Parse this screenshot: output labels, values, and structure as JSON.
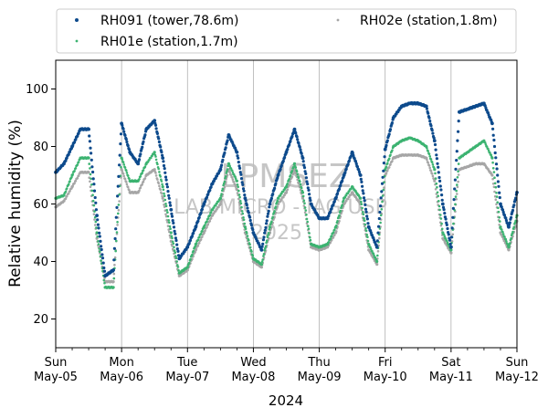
{
  "chart_data": {
    "type": "scatter",
    "xlabel": "2024",
    "ylabel": "Relative humidity (%)",
    "ylim": [
      10,
      110
    ],
    "yticks": [
      20,
      40,
      60,
      80,
      100
    ],
    "xlim": [
      "2024-05-05 00:00",
      "2024-05-12 00:00"
    ],
    "x_major_ticks": [
      {
        "day": "Sun",
        "date": "May-05"
      },
      {
        "day": "Mon",
        "date": "May-06"
      },
      {
        "day": "Tue",
        "date": "May-07"
      },
      {
        "day": "Wed",
        "date": "May-08"
      },
      {
        "day": "Thu",
        "date": "May-09"
      },
      {
        "day": "Fri",
        "date": "May-10"
      },
      {
        "day": "Sat",
        "date": "May-11"
      },
      {
        "day": "Sun",
        "date": "May-12"
      }
    ],
    "grid": "vertical-daily",
    "legend_placement": "top, above plot, 2 columns",
    "watermark": {
      "line1": "LPMSEZ",
      "line2": "LAB MICRO - IAG USP",
      "line3": "2025"
    },
    "series": [
      {
        "name": "RH091 (tower,78.6m)",
        "color": "#0d4a8c",
        "x": [
          "2024-05-05 00:00",
          "2024-05-05 03:00",
          "2024-05-05 06:00",
          "2024-05-05 09:00",
          "2024-05-05 12:00",
          "2024-05-05 15:00",
          "2024-05-05 18:00",
          "2024-05-05 21:00",
          "2024-05-06 00:00",
          "2024-05-06 03:00",
          "2024-05-06 06:00",
          "2024-05-06 09:00",
          "2024-05-06 12:00",
          "2024-05-06 15:00",
          "2024-05-06 18:00",
          "2024-05-06 21:00",
          "2024-05-07 00:00",
          "2024-05-07 03:00",
          "2024-05-07 06:00",
          "2024-05-07 09:00",
          "2024-05-07 12:00",
          "2024-05-07 15:00",
          "2024-05-07 18:00",
          "2024-05-07 21:00",
          "2024-05-08 00:00",
          "2024-05-08 03:00",
          "2024-05-08 06:00",
          "2024-05-08 09:00",
          "2024-05-08 12:00",
          "2024-05-08 15:00",
          "2024-05-08 18:00",
          "2024-05-08 21:00",
          "2024-05-09 00:00",
          "2024-05-09 03:00",
          "2024-05-09 06:00",
          "2024-05-09 09:00",
          "2024-05-09 12:00",
          "2024-05-09 15:00",
          "2024-05-09 18:00",
          "2024-05-09 21:00",
          "2024-05-10 00:00",
          "2024-05-10 03:00",
          "2024-05-10 06:00",
          "2024-05-10 09:00",
          "2024-05-10 12:00",
          "2024-05-10 15:00",
          "2024-05-10 18:00",
          "2024-05-10 21:00",
          "2024-05-11 00:00",
          "2024-05-11 03:00",
          "2024-05-11 06:00",
          "2024-05-11 09:00",
          "2024-05-11 12:00",
          "2024-05-11 15:00",
          "2024-05-11 18:00",
          "2024-05-11 21:00",
          "2024-05-12 00:00"
        ],
        "y": [
          71,
          74,
          80,
          86,
          86,
          56,
          35,
          37,
          88,
          78,
          74,
          86,
          89,
          76,
          58,
          41,
          45,
          52,
          60,
          67,
          72,
          84,
          78,
          62,
          50,
          44,
          60,
          70,
          78,
          86,
          76,
          60,
          55,
          55,
          62,
          70,
          78,
          70,
          52,
          45,
          79,
          90,
          94,
          95,
          95,
          94,
          82,
          60,
          45,
          92,
          93,
          94,
          95,
          88,
          60,
          52,
          64
        ]
      },
      {
        "name": "RH01e (station,1.7m)",
        "color": "#3cb371",
        "x": [
          "2024-05-05 00:00",
          "2024-05-05 03:00",
          "2024-05-05 06:00",
          "2024-05-05 09:00",
          "2024-05-05 12:00",
          "2024-05-05 15:00",
          "2024-05-05 18:00",
          "2024-05-05 21:00",
          "2024-05-06 00:00",
          "2024-05-06 03:00",
          "2024-05-06 06:00",
          "2024-05-06 09:00",
          "2024-05-06 12:00",
          "2024-05-06 15:00",
          "2024-05-06 18:00",
          "2024-05-06 21:00",
          "2024-05-07 00:00",
          "2024-05-07 03:00",
          "2024-05-07 06:00",
          "2024-05-07 09:00",
          "2024-05-07 12:00",
          "2024-05-07 15:00",
          "2024-05-07 18:00",
          "2024-05-07 21:00",
          "2024-05-08 00:00",
          "2024-05-08 03:00",
          "2024-05-08 06:00",
          "2024-05-08 09:00",
          "2024-05-08 12:00",
          "2024-05-08 15:00",
          "2024-05-08 18:00",
          "2024-05-08 21:00",
          "2024-05-09 00:00",
          "2024-05-09 03:00",
          "2024-05-09 06:00",
          "2024-05-09 09:00",
          "2024-05-09 12:00",
          "2024-05-09 15:00",
          "2024-05-09 18:00",
          "2024-05-09 21:00",
          "2024-05-10 00:00",
          "2024-05-10 03:00",
          "2024-05-10 06:00",
          "2024-05-10 09:00",
          "2024-05-10 12:00",
          "2024-05-10 15:00",
          "2024-05-10 18:00",
          "2024-05-10 21:00",
          "2024-05-11 00:00",
          "2024-05-11 03:00",
          "2024-05-11 06:00",
          "2024-05-11 09:00",
          "2024-05-11 12:00",
          "2024-05-11 15:00",
          "2024-05-11 18:00",
          "2024-05-11 21:00",
          "2024-05-12 00:00"
        ],
        "y": [
          62,
          63,
          70,
          76,
          76,
          50,
          31,
          31,
          76,
          68,
          68,
          74,
          78,
          66,
          50,
          36,
          38,
          46,
          52,
          58,
          62,
          74,
          68,
          52,
          41,
          39,
          52,
          62,
          66,
          74,
          64,
          46,
          45,
          46,
          52,
          62,
          66,
          62,
          46,
          40,
          72,
          80,
          82,
          83,
          82,
          80,
          72,
          50,
          44,
          76,
          78,
          80,
          82,
          76,
          52,
          45,
          56
        ]
      },
      {
        "name": "RH02e (station,1.8m)",
        "color": "#a6a6a6",
        "x": [
          "2024-05-05 00:00",
          "2024-05-05 03:00",
          "2024-05-05 06:00",
          "2024-05-05 09:00",
          "2024-05-05 12:00",
          "2024-05-05 15:00",
          "2024-05-05 18:00",
          "2024-05-05 21:00",
          "2024-05-06 00:00",
          "2024-05-06 03:00",
          "2024-05-06 06:00",
          "2024-05-06 09:00",
          "2024-05-06 12:00",
          "2024-05-06 15:00",
          "2024-05-06 18:00",
          "2024-05-06 21:00",
          "2024-05-07 00:00",
          "2024-05-07 03:00",
          "2024-05-07 06:00",
          "2024-05-07 09:00",
          "2024-05-07 12:00",
          "2024-05-07 15:00",
          "2024-05-07 18:00",
          "2024-05-07 21:00",
          "2024-05-08 00:00",
          "2024-05-08 03:00",
          "2024-05-08 06:00",
          "2024-05-08 09:00",
          "2024-05-08 12:00",
          "2024-05-08 15:00",
          "2024-05-08 18:00",
          "2024-05-08 21:00",
          "2024-05-09 00:00",
          "2024-05-09 03:00",
          "2024-05-09 06:00",
          "2024-05-09 09:00",
          "2024-05-09 12:00",
          "2024-05-09 15:00",
          "2024-05-09 18:00",
          "2024-05-09 21:00",
          "2024-05-10 00:00",
          "2024-05-10 03:00",
          "2024-05-10 06:00",
          "2024-05-10 09:00",
          "2024-05-10 12:00",
          "2024-05-10 15:00",
          "2024-05-10 18:00",
          "2024-05-10 21:00",
          "2024-05-11 00:00",
          "2024-05-11 03:00",
          "2024-05-11 06:00",
          "2024-05-11 09:00",
          "2024-05-11 12:00",
          "2024-05-11 15:00",
          "2024-05-11 18:00",
          "2024-05-11 21:00",
          "2024-05-12 00:00"
        ],
        "y": [
          59,
          61,
          66,
          71,
          71,
          48,
          33,
          33,
          72,
          64,
          64,
          70,
          72,
          62,
          47,
          35,
          37,
          44,
          50,
          56,
          60,
          72,
          65,
          50,
          40,
          38,
          50,
          60,
          64,
          72,
          62,
          45,
          44,
          45,
          50,
          60,
          64,
          60,
          44,
          39,
          70,
          76,
          77,
          77,
          77,
          76,
          68,
          48,
          43,
          72,
          73,
          74,
          74,
          70,
          50,
          44,
          54
        ]
      }
    ]
  }
}
